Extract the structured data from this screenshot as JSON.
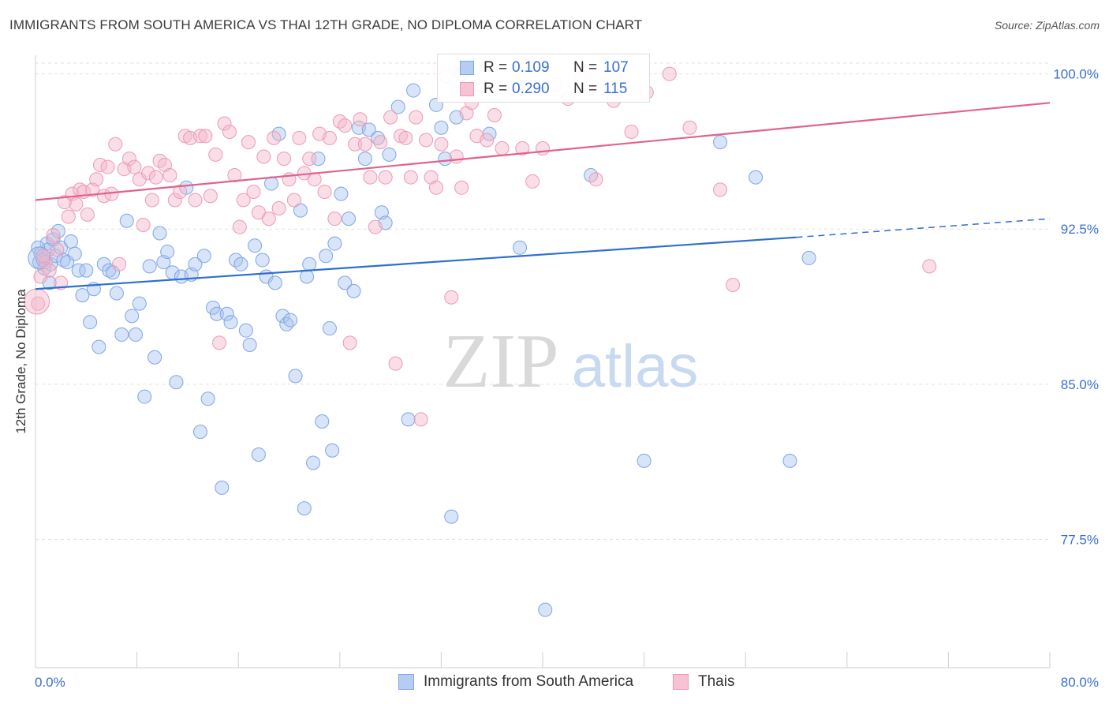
{
  "title": "IMMIGRANTS FROM SOUTH AMERICA VS THAI 12TH GRADE, NO DIPLOMA CORRELATION CHART",
  "source": "Source: ZipAtlas.com",
  "watermark": {
    "zip": "ZIP",
    "atlas": "atlas"
  },
  "legend_top": [
    {
      "r_label": "R =",
      "r_value": "0.109",
      "n_label": "N =",
      "n_value": "107"
    },
    {
      "r_label": "R =",
      "r_value": "0.290",
      "n_label": "N =",
      "n_value": "115"
    }
  ],
  "legend_bottom": [
    "Immigrants from South America",
    "Thais"
  ],
  "chart_data": {
    "type": "scatter",
    "title": "IMMIGRANTS FROM SOUTH AMERICA VS THAI 12TH GRADE, NO DIPLOMA CORRELATION CHART",
    "xlabel": "",
    "ylabel": "12th Grade, No Diploma",
    "xlim": [
      0,
      80
    ],
    "ylim": [
      71.3,
      100.9
    ],
    "x_tick_labels": [
      "0.0%",
      "80.0%"
    ],
    "y_ticks": [
      77.5,
      85.0,
      92.5,
      100.0
    ],
    "y_tick_labels": [
      "77.5%",
      "85.0%",
      "92.5%",
      "100.0%"
    ],
    "grid": "horizontal dashed",
    "legend_position": "top-center",
    "colors": {
      "blue_fill": "#a9c4ef",
      "blue_line": "#2f6fd0",
      "pink_fill": "#f5b6ca",
      "pink_line": "#e0628f",
      "tick_text": "#3a6fd0"
    },
    "series": [
      {
        "name": "Immigrants from South America",
        "r": 0.109,
        "n": 107,
        "trend": {
          "x": [
            0,
            60
          ],
          "y": [
            89.6,
            92.1
          ],
          "dashed_to": [
            80,
            93.0
          ]
        },
        "points": [
          [
            0.3,
            90.9
          ],
          [
            0.4,
            91.3
          ],
          [
            0.6,
            91.0
          ],
          [
            0.7,
            90.6
          ],
          [
            0.9,
            91.8
          ],
          [
            1.0,
            91.5
          ],
          [
            1.2,
            90.8
          ],
          [
            1.4,
            92.0
          ],
          [
            1.6,
            91.2
          ],
          [
            1.8,
            92.4
          ],
          [
            2.0,
            91.6
          ],
          [
            2.2,
            91.0
          ],
          [
            2.5,
            90.9
          ],
          [
            2.8,
            91.9
          ],
          [
            3.1,
            91.3
          ],
          [
            3.4,
            90.5
          ],
          [
            3.7,
            89.3
          ],
          [
            4.0,
            90.5
          ],
          [
            4.3,
            88.0
          ],
          [
            4.6,
            89.6
          ],
          [
            5.0,
            86.8
          ],
          [
            5.4,
            90.8
          ],
          [
            5.8,
            90.5
          ],
          [
            6.1,
            90.4
          ],
          [
            6.4,
            89.4
          ],
          [
            6.8,
            87.4
          ],
          [
            7.2,
            92.9
          ],
          [
            7.6,
            88.3
          ],
          [
            7.9,
            87.4
          ],
          [
            8.2,
            88.9
          ],
          [
            8.6,
            84.4
          ],
          [
            9.0,
            90.7
          ],
          [
            9.4,
            86.3
          ],
          [
            9.8,
            92.3
          ],
          [
            10.1,
            90.9
          ],
          [
            10.4,
            91.4
          ],
          [
            10.8,
            90.4
          ],
          [
            11.1,
            85.1
          ],
          [
            11.5,
            90.2
          ],
          [
            11.9,
            94.5
          ],
          [
            12.3,
            90.3
          ],
          [
            12.6,
            90.8
          ],
          [
            13.0,
            82.7
          ],
          [
            13.3,
            91.2
          ],
          [
            13.6,
            84.3
          ],
          [
            14.0,
            88.7
          ],
          [
            14.3,
            88.4
          ],
          [
            14.7,
            80.0
          ],
          [
            15.1,
            88.4
          ],
          [
            15.4,
            88.0
          ],
          [
            15.8,
            91.0
          ],
          [
            16.2,
            90.8
          ],
          [
            16.6,
            87.6
          ],
          [
            16.9,
            86.9
          ],
          [
            17.3,
            91.7
          ],
          [
            17.6,
            81.6
          ],
          [
            17.9,
            91.0
          ],
          [
            18.2,
            90.2
          ],
          [
            18.6,
            94.7
          ],
          [
            18.9,
            89.9
          ],
          [
            19.2,
            97.1
          ],
          [
            19.5,
            88.3
          ],
          [
            19.8,
            87.9
          ],
          [
            20.1,
            88.1
          ],
          [
            20.5,
            85.4
          ],
          [
            20.9,
            93.4
          ],
          [
            21.2,
            79.0
          ],
          [
            21.4,
            90.2
          ],
          [
            21.6,
            90.8
          ],
          [
            21.9,
            81.2
          ],
          [
            22.3,
            95.9
          ],
          [
            22.6,
            83.2
          ],
          [
            22.9,
            91.2
          ],
          [
            23.2,
            87.7
          ],
          [
            23.4,
            81.8
          ],
          [
            23.6,
            91.8
          ],
          [
            24.1,
            94.2
          ],
          [
            24.4,
            89.9
          ],
          [
            24.7,
            93.0
          ],
          [
            25.1,
            89.5
          ],
          [
            25.5,
            97.4
          ],
          [
            26.0,
            95.9
          ],
          [
            26.3,
            97.3
          ],
          [
            27.0,
            96.9
          ],
          [
            27.3,
            93.3
          ],
          [
            27.6,
            92.8
          ],
          [
            27.9,
            96.1
          ],
          [
            28.6,
            98.4
          ],
          [
            29.4,
            83.3
          ],
          [
            29.8,
            99.2
          ],
          [
            31.6,
            98.5
          ],
          [
            32.0,
            97.4
          ],
          [
            32.3,
            95.9
          ],
          [
            32.8,
            78.6
          ],
          [
            33.2,
            97.9
          ],
          [
            33.6,
            100.0
          ],
          [
            35.8,
            97.1
          ],
          [
            38.2,
            91.6
          ],
          [
            40.2,
            74.1
          ],
          [
            43.8,
            95.1
          ],
          [
            48.0,
            81.3
          ],
          [
            54.0,
            96.7
          ],
          [
            59.5,
            81.3
          ],
          [
            56.8,
            95.0
          ],
          [
            61.0,
            91.1
          ],
          [
            1.1,
            89.9
          ],
          [
            0.2,
            91.6
          ]
        ]
      },
      {
        "name": "Thais",
        "r": 0.29,
        "n": 115,
        "trend": {
          "x": [
            0,
            80
          ],
          "y": [
            93.9,
            98.6
          ]
        },
        "points": [
          [
            0.2,
            88.9
          ],
          [
            0.4,
            90.2
          ],
          [
            0.8,
            90.9
          ],
          [
            1.1,
            90.5
          ],
          [
            1.4,
            92.2
          ],
          [
            1.7,
            91.5
          ],
          [
            2.0,
            89.9
          ],
          [
            2.3,
            93.8
          ],
          [
            2.6,
            93.1
          ],
          [
            2.9,
            94.2
          ],
          [
            3.2,
            93.7
          ],
          [
            3.5,
            94.4
          ],
          [
            3.8,
            94.3
          ],
          [
            4.1,
            93.2
          ],
          [
            4.5,
            94.4
          ],
          [
            4.8,
            94.9
          ],
          [
            5.1,
            95.6
          ],
          [
            5.4,
            94.1
          ],
          [
            5.7,
            95.5
          ],
          [
            6.0,
            94.2
          ],
          [
            6.3,
            96.6
          ],
          [
            6.6,
            90.8
          ],
          [
            7.0,
            95.4
          ],
          [
            7.4,
            95.9
          ],
          [
            7.8,
            95.5
          ],
          [
            8.2,
            94.9
          ],
          [
            8.5,
            92.7
          ],
          [
            8.9,
            95.2
          ],
          [
            9.2,
            93.9
          ],
          [
            9.5,
            95.0
          ],
          [
            9.8,
            95.8
          ],
          [
            10.2,
            95.6
          ],
          [
            10.6,
            95.1
          ],
          [
            11.0,
            93.9
          ],
          [
            11.4,
            94.3
          ],
          [
            11.8,
            97.0
          ],
          [
            12.2,
            96.9
          ],
          [
            12.6,
            93.9
          ],
          [
            13.0,
            97.0
          ],
          [
            13.4,
            97.0
          ],
          [
            13.8,
            94.1
          ],
          [
            14.2,
            96.1
          ],
          [
            14.5,
            87.0
          ],
          [
            14.9,
            97.6
          ],
          [
            15.3,
            97.2
          ],
          [
            15.7,
            95.1
          ],
          [
            16.1,
            92.6
          ],
          [
            16.4,
            93.9
          ],
          [
            16.8,
            96.7
          ],
          [
            17.2,
            94.3
          ],
          [
            17.6,
            93.3
          ],
          [
            18.0,
            96.0
          ],
          [
            18.4,
            93.0
          ],
          [
            18.8,
            96.9
          ],
          [
            19.2,
            93.5
          ],
          [
            19.6,
            95.9
          ],
          [
            20.0,
            94.9
          ],
          [
            20.4,
            93.9
          ],
          [
            20.8,
            96.9
          ],
          [
            21.2,
            95.2
          ],
          [
            21.6,
            95.9
          ],
          [
            22.0,
            94.9
          ],
          [
            22.4,
            97.1
          ],
          [
            22.8,
            94.3
          ],
          [
            23.2,
            96.9
          ],
          [
            23.6,
            93.0
          ],
          [
            24.0,
            97.7
          ],
          [
            24.4,
            97.5
          ],
          [
            24.8,
            87.0
          ],
          [
            25.2,
            96.6
          ],
          [
            25.6,
            97.8
          ],
          [
            26.0,
            96.6
          ],
          [
            26.4,
            95.0
          ],
          [
            26.8,
            92.6
          ],
          [
            27.2,
            96.7
          ],
          [
            27.6,
            95.0
          ],
          [
            28.0,
            97.9
          ],
          [
            28.4,
            86.0
          ],
          [
            28.8,
            97.0
          ],
          [
            29.2,
            96.9
          ],
          [
            29.6,
            95.0
          ],
          [
            30.0,
            97.9
          ],
          [
            30.4,
            83.3
          ],
          [
            30.8,
            96.8
          ],
          [
            31.2,
            95.0
          ],
          [
            31.6,
            94.5
          ],
          [
            32.0,
            96.6
          ],
          [
            32.4,
            99.9
          ],
          [
            32.8,
            89.2
          ],
          [
            33.2,
            96.0
          ],
          [
            33.6,
            94.5
          ],
          [
            34.0,
            98.1
          ],
          [
            34.4,
            98.6
          ],
          [
            34.8,
            97.0
          ],
          [
            35.2,
            99.4
          ],
          [
            35.6,
            96.8
          ],
          [
            36.2,
            98.0
          ],
          [
            36.8,
            96.4
          ],
          [
            37.6,
            99.3
          ],
          [
            38.4,
            96.4
          ],
          [
            39.2,
            94.8
          ],
          [
            40.0,
            96.4
          ],
          [
            41.0,
            99.5
          ],
          [
            42.0,
            98.8
          ],
          [
            43.0,
            99.8
          ],
          [
            44.2,
            94.9
          ],
          [
            45.6,
            98.7
          ],
          [
            47.0,
            97.2
          ],
          [
            48.2,
            99.1
          ],
          [
            50.0,
            100.0
          ],
          [
            51.6,
            97.4
          ],
          [
            54.0,
            94.4
          ],
          [
            55.0,
            89.8
          ],
          [
            70.5,
            90.7
          ],
          [
            0.6,
            91.2
          ]
        ]
      }
    ]
  }
}
